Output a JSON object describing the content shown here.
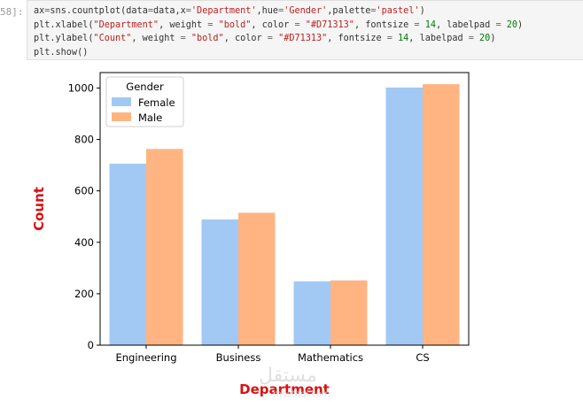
{
  "notebook": {
    "prompt": "58]:",
    "code_lines": [
      [
        [
          "t",
          "ax"
        ],
        [
          "o",
          "="
        ],
        [
          "t",
          "sns.countplot(data"
        ],
        [
          "o",
          "="
        ],
        [
          "t",
          "data,x"
        ],
        [
          "o",
          "="
        ],
        [
          "s",
          "'Department'"
        ],
        [
          "t",
          ",hue"
        ],
        [
          "o",
          "="
        ],
        [
          "s",
          "'Gender'"
        ],
        [
          "t",
          ",palette"
        ],
        [
          "o",
          "="
        ],
        [
          "s",
          "'pastel'"
        ],
        [
          "t",
          ")"
        ]
      ],
      [
        [
          "t",
          "plt.xlabel("
        ],
        [
          "s",
          "\"Department\""
        ],
        [
          "t",
          ", weight "
        ],
        [
          "o",
          "="
        ],
        [
          "t",
          " "
        ],
        [
          "s",
          "\"bold\""
        ],
        [
          "t",
          ", color "
        ],
        [
          "o",
          "="
        ],
        [
          "t",
          " "
        ],
        [
          "s",
          "\"#D71313\""
        ],
        [
          "t",
          ", fontsize "
        ],
        [
          "o",
          "="
        ],
        [
          "t",
          " "
        ],
        [
          "n",
          "14"
        ],
        [
          "t",
          ", labelpad "
        ],
        [
          "o",
          "="
        ],
        [
          "t",
          " "
        ],
        [
          "n",
          "20"
        ],
        [
          "t",
          ")"
        ]
      ],
      [
        [
          "t",
          "plt.ylabel("
        ],
        [
          "s",
          "\"Count\""
        ],
        [
          "t",
          ", weight "
        ],
        [
          "o",
          "="
        ],
        [
          "t",
          " "
        ],
        [
          "s",
          "\"bold\""
        ],
        [
          "t",
          ", color "
        ],
        [
          "o",
          "="
        ],
        [
          "t",
          " "
        ],
        [
          "s",
          "\"#D71313\""
        ],
        [
          "t",
          ", fontsize "
        ],
        [
          "o",
          "="
        ],
        [
          "t",
          " "
        ],
        [
          "n",
          "14"
        ],
        [
          "t",
          ", labelpad "
        ],
        [
          "o",
          "="
        ],
        [
          "t",
          " "
        ],
        [
          "n",
          "20"
        ],
        [
          "t",
          ")"
        ]
      ],
      [
        [
          "t",
          "plt.show()"
        ]
      ]
    ]
  },
  "chart_data": {
    "type": "bar",
    "categories": [
      "Engineering",
      "Business",
      "Mathematics",
      "CS"
    ],
    "series": [
      {
        "name": "Female",
        "values": [
          706,
          489,
          248,
          1002
        ],
        "color": "#a1c9f4"
      },
      {
        "name": "Male",
        "values": [
          763,
          515,
          252,
          1015
        ],
        "color": "#ffb482"
      }
    ],
    "xlabel": "Department",
    "ylabel": "Count",
    "label_color": "#D71313",
    "ylim": [
      0,
      1060
    ],
    "yticks": [
      0,
      200,
      400,
      600,
      800,
      1000
    ],
    "legend": {
      "title": "Gender",
      "placement": "upper left"
    },
    "grid": false
  },
  "watermark": {
    "text": "مستقل",
    "sub": "mostaql.com"
  }
}
